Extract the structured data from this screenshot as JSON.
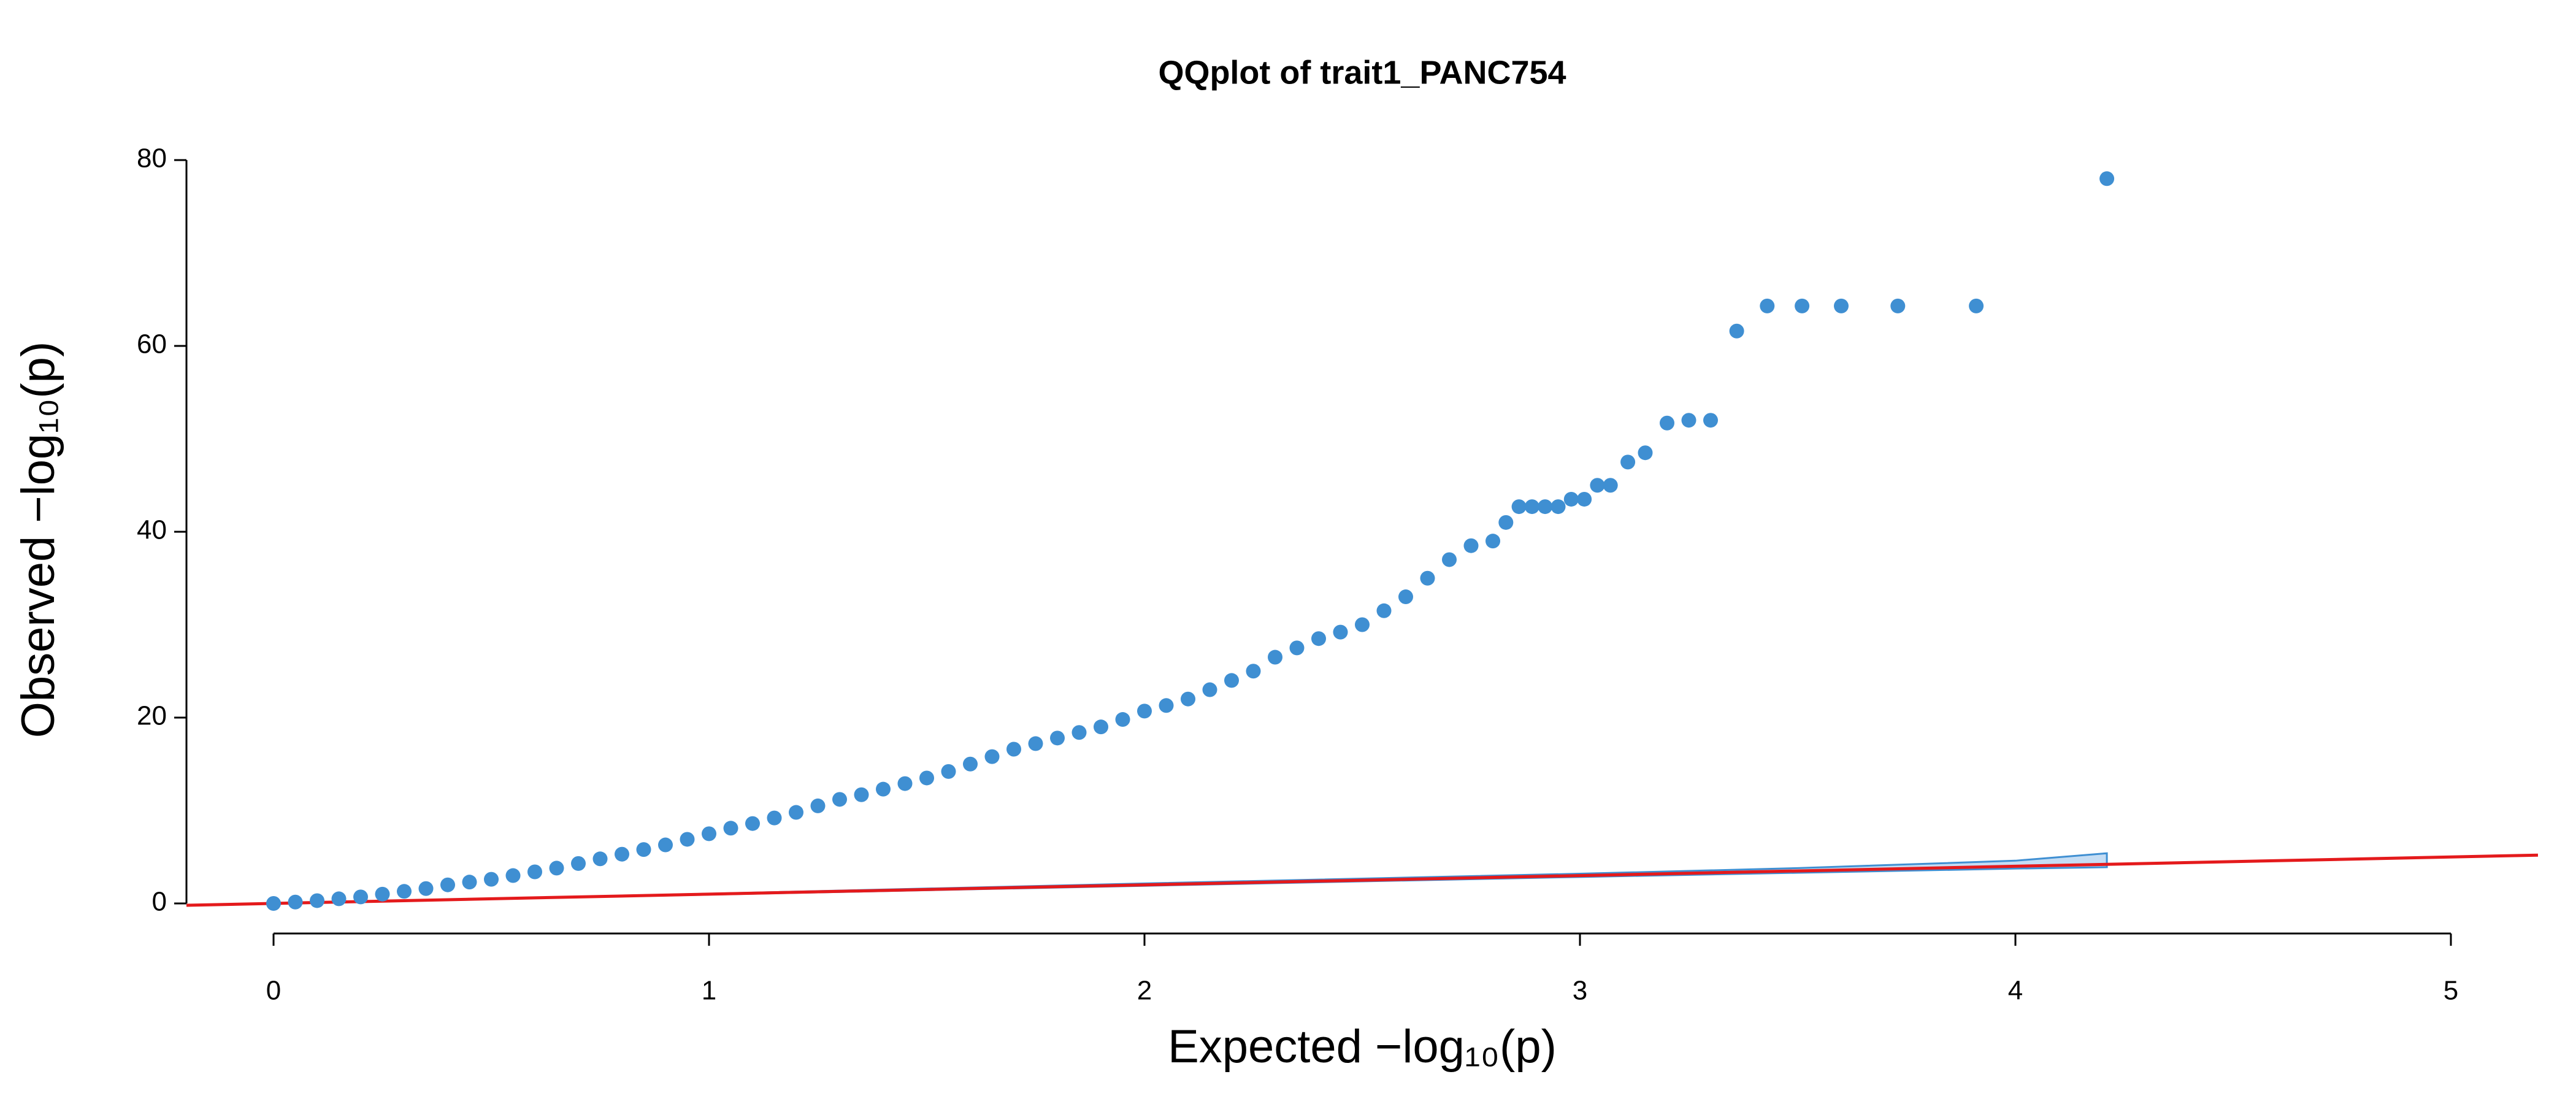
{
  "chart_data": {
    "type": "scatter",
    "title": "QQplot of trait1_PANC754",
    "x_label": "Expected −log₁₀(p)",
    "y_label": "Observed −log₁₀(p)",
    "xlim": [
      0,
      5
    ],
    "ylim": [
      0,
      80
    ],
    "xticks": [
      0,
      1,
      2,
      3,
      4,
      5
    ],
    "yticks": [
      0,
      20,
      40,
      60,
      80
    ],
    "color": "#3f8fd2",
    "x": [
      0,
      0.05,
      0.1,
      0.15,
      0.2,
      0.25,
      0.3,
      0.35,
      0.4,
      0.45,
      0.5,
      0.55,
      0.6,
      0.65,
      0.7,
      0.75,
      0.8,
      0.85,
      0.9,
      0.95,
      1.0,
      1.05,
      1.1,
      1.15,
      1.2,
      1.25,
      1.3,
      1.35,
      1.4,
      1.45,
      1.5,
      1.55,
      1.6,
      1.65,
      1.7,
      1.75,
      1.8,
      1.85,
      1.9,
      1.95,
      2.0,
      2.05,
      2.1,
      2.15,
      2.2,
      2.25,
      2.3,
      2.35,
      2.4,
      2.45,
      2.5,
      2.55,
      2.6,
      2.65,
      2.7,
      2.75,
      2.8,
      2.83,
      2.86,
      2.89,
      2.92,
      2.95,
      2.98,
      3.01,
      3.04,
      3.07,
      3.11,
      3.15,
      3.2,
      3.25,
      3.3,
      3.36,
      3.43,
      3.51,
      3.6,
      3.73,
      3.91,
      4.21
    ],
    "y": [
      0,
      0.15,
      0.3,
      0.5,
      0.7,
      1.0,
      1.3,
      1.6,
      2.0,
      2.3,
      2.6,
      3.0,
      3.4,
      3.8,
      4.3,
      4.8,
      5.3,
      5.8,
      6.3,
      6.9,
      7.5,
      8.1,
      8.6,
      9.2,
      9.8,
      10.5,
      11.2,
      11.7,
      12.3,
      12.9,
      13.5,
      14.2,
      15.0,
      15.8,
      16.6,
      17.2,
      17.8,
      18.4,
      19.0,
      19.8,
      20.7,
      21.3,
      22.0,
      23.0,
      24.0,
      25.0,
      26.5,
      27.5,
      28.5,
      29.2,
      30.0,
      31.5,
      33.0,
      35.0,
      37.0,
      38.5,
      39.0,
      41.0,
      42.7,
      42.7,
      42.7,
      42.7,
      43.5,
      43.5,
      45.0,
      45.0,
      47.5,
      48.5,
      51.7,
      52.0,
      52.0,
      61.6,
      64.3,
      64.3,
      64.3,
      64.3,
      64.3,
      78.0
    ],
    "reference_line": {
      "x": [
        -0.2,
        5.2
      ],
      "y": [
        -0.2,
        5.2
      ],
      "color": "#e41a1c"
    },
    "confidence_band": {
      "x": [
        0,
        1,
        2,
        3,
        3.5,
        4,
        4.21
      ],
      "lower": [
        0,
        0.95,
        1.9,
        2.85,
        3.3,
        3.75,
        3.9
      ],
      "upper": [
        0,
        1.05,
        2.15,
        3.2,
        3.8,
        4.6,
        5.4
      ],
      "color": "#9ec6ec"
    }
  }
}
